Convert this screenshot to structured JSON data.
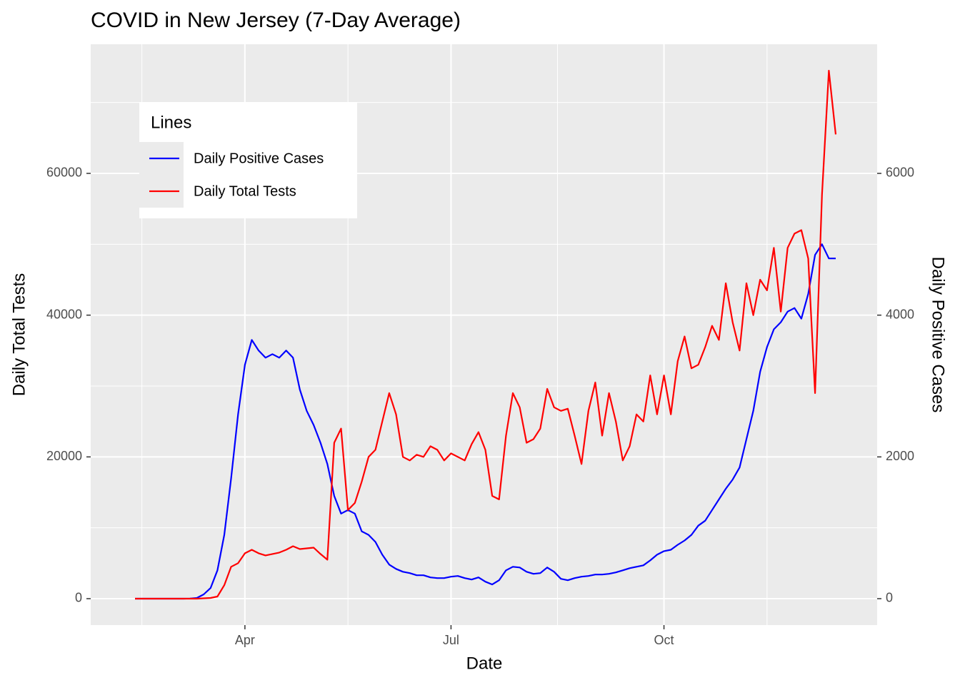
{
  "chart_data": {
    "type": "line",
    "title": "COVID in New Jersey (7-Day Average)",
    "x_label": "Date",
    "y_label": "Daily Total Tests",
    "y2_label": "Daily Positive Cases",
    "legend_title": "Lines",
    "legend_position": "top-left",
    "grid": true,
    "categories": [
      null,
      null,
      null,
      null,
      null,
      null,
      null,
      null,
      null,
      null,
      null,
      null,
      null,
      null,
      null,
      null,
      "Apr",
      null,
      null,
      null,
      null,
      null,
      null,
      null,
      null,
      null,
      null,
      null,
      null,
      null,
      null,
      null,
      null,
      null,
      null,
      null,
      null,
      null,
      null,
      null,
      null,
      null,
      null,
      null,
      null,
      null,
      "Jul",
      null,
      null,
      null,
      null,
      null,
      null,
      null,
      null,
      null,
      null,
      null,
      null,
      null,
      null,
      null,
      null,
      null,
      null,
      null,
      null,
      null,
      null,
      null,
      null,
      null,
      null,
      null,
      null,
      null,
      null,
      "Oct",
      null,
      null,
      null,
      null,
      null,
      null,
      null,
      null,
      null,
      null,
      null,
      null,
      null,
      null,
      null,
      null,
      null,
      null,
      null,
      null,
      null,
      null,
      null,
      null,
      null
    ],
    "ylim": [
      -3725,
      78220
    ],
    "yticks": [
      0,
      20000,
      40000,
      60000
    ],
    "y2lim": [
      -372.5,
      7822
    ],
    "y2ticks": [
      0,
      2000,
      4000,
      6000
    ],
    "series": [
      {
        "name": "Daily Positive Cases",
        "color": "#0000ff",
        "axis": "y2",
        "values": [
          0,
          0,
          0,
          0,
          0,
          0,
          0,
          0,
          2,
          10,
          60,
          150,
          400,
          900,
          1700,
          2600,
          3300,
          3650,
          3500,
          3400,
          3450,
          3400,
          3500,
          3400,
          2950,
          2650,
          2450,
          2200,
          1900,
          1450,
          1200,
          1250,
          1200,
          950,
          900,
          800,
          620,
          480,
          420,
          380,
          360,
          330,
          330,
          300,
          290,
          290,
          310,
          320,
          290,
          270,
          300,
          240,
          200,
          260,
          400,
          450,
          440,
          380,
          350,
          360,
          440,
          380,
          280,
          260,
          290,
          310,
          320,
          340,
          340,
          350,
          370,
          400,
          430,
          450,
          470,
          540,
          620,
          670,
          690,
          760,
          820,
          900,
          1030,
          1100,
          1250,
          1400,
          1550,
          1680,
          1850,
          2250,
          2650,
          3200,
          3550,
          3800,
          3900,
          4050,
          4100,
          3950,
          4300,
          4850,
          5000,
          4800,
          4800
        ]
      },
      {
        "name": "Daily Total Tests",
        "color": "#ff0000",
        "values": [
          0,
          0,
          0,
          0,
          0,
          0,
          0,
          0,
          0,
          0,
          50,
          100,
          300,
          1900,
          4500,
          5000,
          6400,
          6900,
          6400,
          6100,
          6300,
          6500,
          6900,
          7400,
          7000,
          7100,
          7200,
          6300,
          5500,
          22000,
          24000,
          12500,
          13500,
          16500,
          20000,
          21000,
          25000,
          29000,
          26000,
          20000,
          19500,
          20300,
          20000,
          21500,
          21000,
          19500,
          20500,
          20000,
          19500,
          21800,
          23500,
          21000,
          14500,
          14000,
          23000,
          29000,
          27000,
          22000,
          22500,
          24000,
          29600,
          27000,
          26500,
          26800,
          23000,
          19000,
          26500,
          30500,
          23000,
          29000,
          25000,
          19500,
          21500,
          26000,
          25000,
          31500,
          26000,
          31500,
          26000,
          33500,
          37000,
          32500,
          33000,
          35500,
          38500,
          36500,
          44500,
          39000,
          35000,
          44500,
          40000,
          45000,
          43500,
          49500,
          40500,
          49500,
          51500,
          52000,
          48000,
          29000,
          57000,
          74500,
          65500
        ]
      }
    ]
  }
}
